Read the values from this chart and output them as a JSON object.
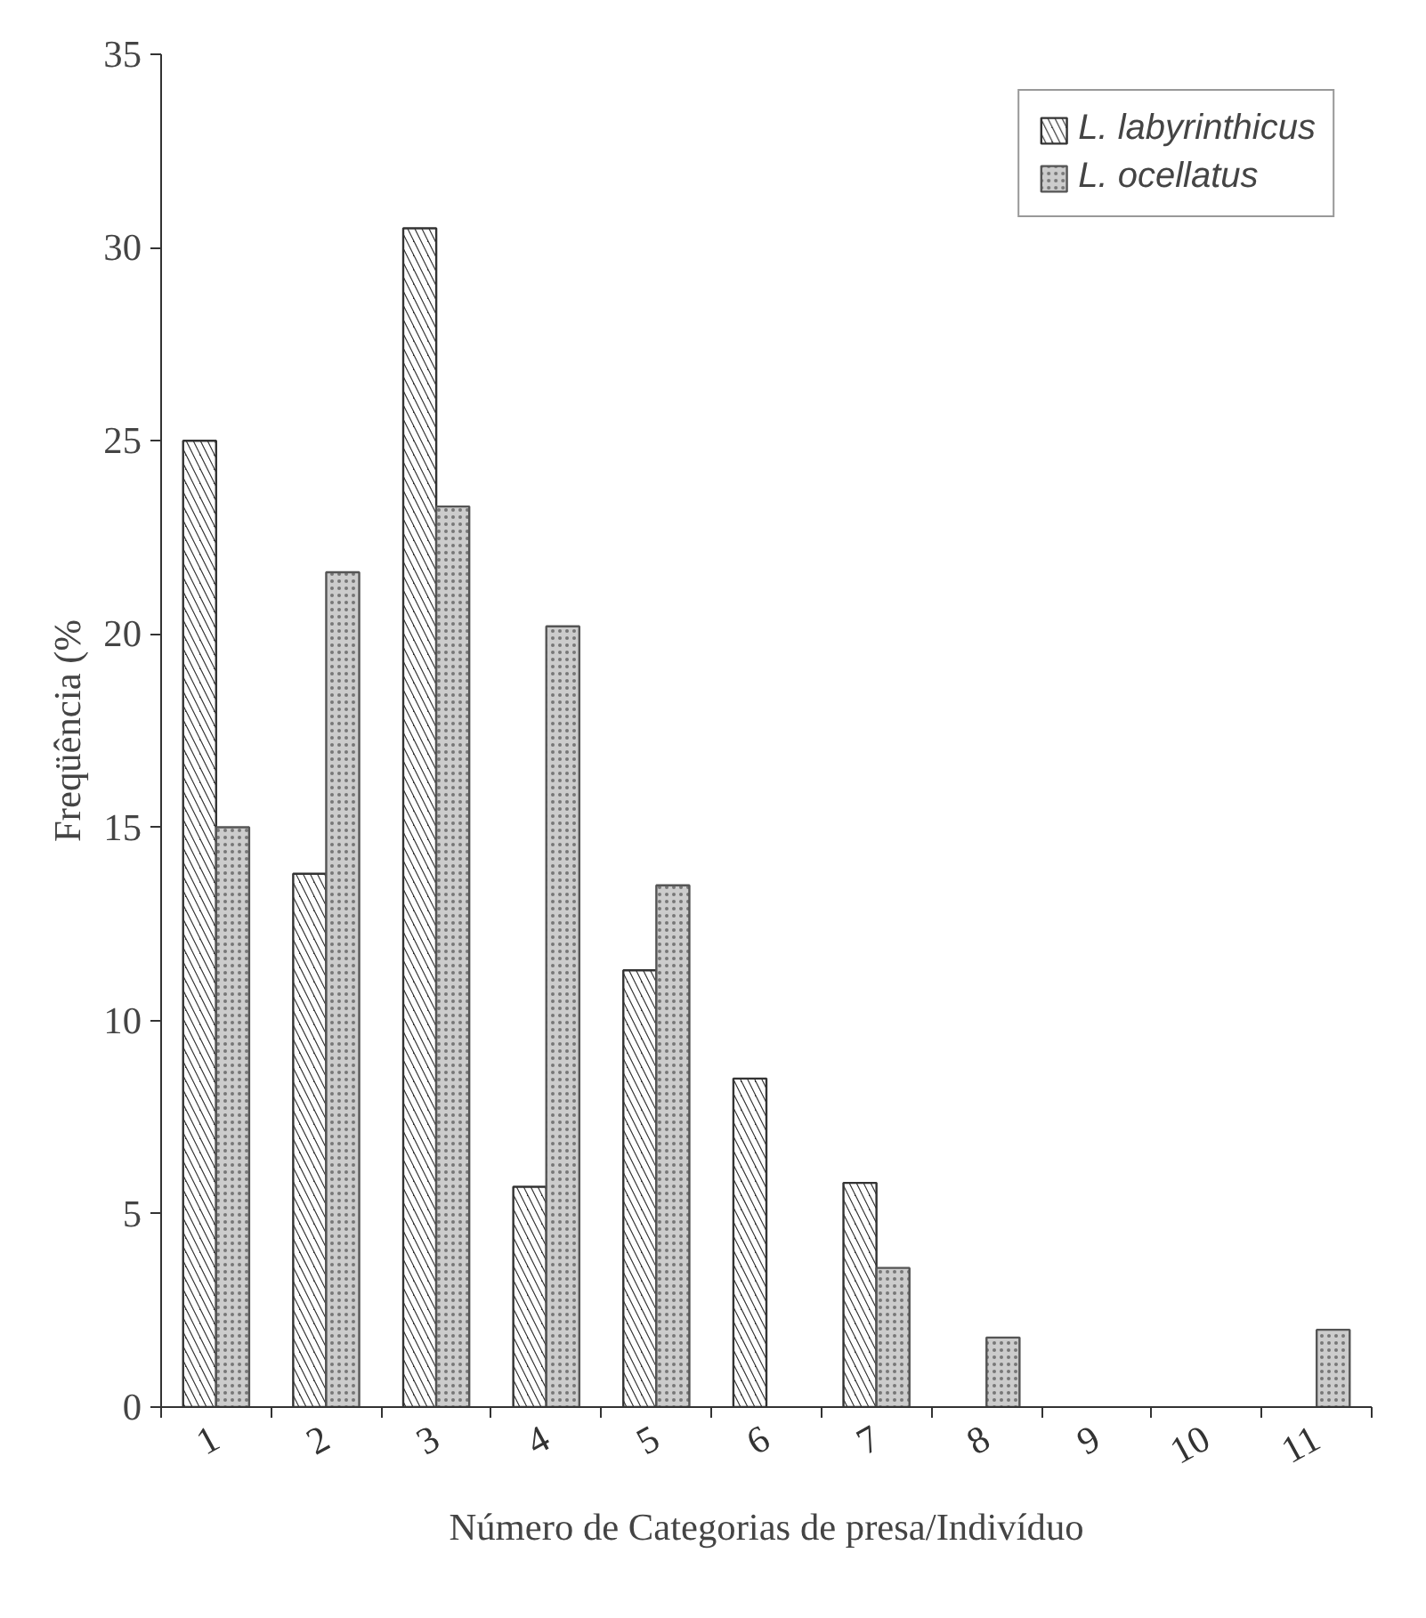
{
  "chart_data": {
    "type": "bar",
    "xlabel": "Número de Categorias de presa/Indivíduo",
    "ylabel": "Freqüência (%",
    "categories": [
      "1",
      "2",
      "3",
      "4",
      "5",
      "6",
      "7",
      "8",
      "9",
      "10",
      "11"
    ],
    "series": [
      {
        "name": "L. labyrinthicus",
        "color": "#333333",
        "values": [
          25,
          13.8,
          30.5,
          5.7,
          11.3,
          8.5,
          5.8,
          null,
          null,
          null,
          null
        ]
      },
      {
        "name": "L. ocellatus",
        "color": "#cccccc",
        "values": [
          15,
          21.6,
          23.3,
          20.2,
          13.5,
          null,
          3.6,
          1.8,
          null,
          null,
          2.0
        ]
      }
    ],
    "ylim": [
      0,
      35
    ],
    "yticks": [
      0,
      5,
      10,
      15,
      20,
      25,
      30,
      35
    ],
    "grid": false,
    "legend": "top right"
  }
}
